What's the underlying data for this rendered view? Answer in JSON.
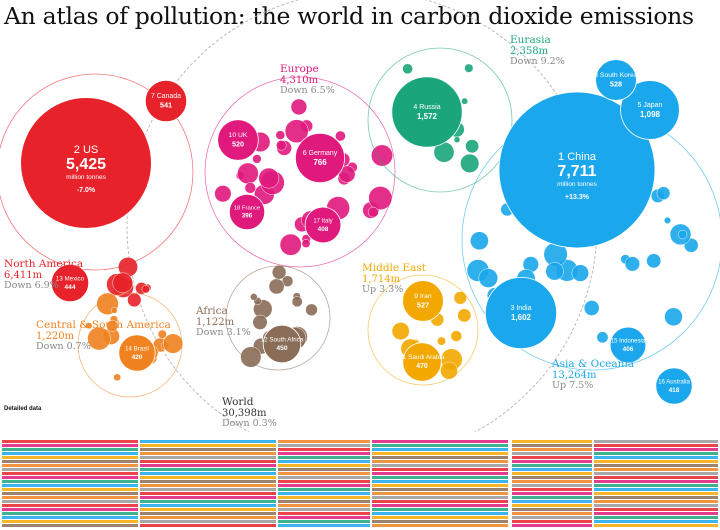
{
  "title": "An atlas of pollution: the world in carbon dioxide emissions",
  "palette": {
    "north_america": "#e8222a",
    "europe": "#e0197d",
    "eurasia": "#1aa67a",
    "asia_oceania": "#1aa7ec",
    "middle_east": "#f2a800",
    "africa": "#8a6d57",
    "central_south_america": "#f08220",
    "world": "#999999"
  },
  "chart_data": {
    "type": "bubble",
    "unit": "million tonnes",
    "regions": [
      {
        "key": "north_america",
        "name": "North America",
        "total": "6,411m",
        "change": "Down 6.9%"
      },
      {
        "key": "europe",
        "name": "Europe",
        "total": "4,310m",
        "change": "Down 6.5%"
      },
      {
        "key": "eurasia",
        "name": "Eurasia",
        "total": "2,358m",
        "change": "Down 9.2%"
      },
      {
        "key": "asia_oceania",
        "name": "Asia & Oceania",
        "total": "13,264m",
        "change": "Up 7.5%"
      },
      {
        "key": "middle_east",
        "name": "Middle East",
        "total": "1,714m",
        "change": "Up 3.3%"
      },
      {
        "key": "africa",
        "name": "Africa",
        "total": "1,122m",
        "change": "Down 3.1%"
      },
      {
        "key": "central_south_america",
        "name": "Central & South America",
        "total": "1,220m",
        "change": "Down 0.7%"
      },
      {
        "key": "world",
        "name": "World",
        "total": "30,398m",
        "change": "Down 0.3%"
      }
    ],
    "countries": [
      {
        "rank": 1,
        "name": "China",
        "value": 7711,
        "region": "asia_oceania",
        "value_text": "7,711",
        "unit_label": "million tonnes",
        "change_text": "+13.3%"
      },
      {
        "rank": 2,
        "name": "US",
        "value": 5425,
        "region": "north_america",
        "value_text": "5,425",
        "unit_label": "million tonnes",
        "change_text": "-7.0%"
      },
      {
        "rank": 3,
        "name": "India",
        "value": 1602,
        "region": "asia_oceania",
        "value_text": "1,602"
      },
      {
        "rank": 4,
        "name": "Russia",
        "value": 1572,
        "region": "eurasia",
        "value_text": "1,572"
      },
      {
        "rank": 5,
        "name": "Japan",
        "value": 1098,
        "region": "asia_oceania",
        "value_text": "1,098"
      },
      {
        "rank": 6,
        "name": "Germany",
        "value": 766,
        "region": "europe",
        "value_text": "766"
      },
      {
        "rank": 7,
        "name": "Canada",
        "value": 541,
        "region": "north_america",
        "value_text": "541"
      },
      {
        "rank": 8,
        "name": "South Korea",
        "value": 528,
        "region": "asia_oceania",
        "value_text": "528"
      },
      {
        "rank": 9,
        "name": "Iran",
        "value": 527,
        "region": "middle_east",
        "value_text": "527"
      },
      {
        "rank": 10,
        "name": "UK",
        "value": 520,
        "region": "europe",
        "value_text": "520"
      },
      {
        "rank": 11,
        "name": "Saudi Arabia",
        "value": 470,
        "region": "middle_east",
        "value_text": "470"
      },
      {
        "rank": 12,
        "name": "South Africa",
        "value": 450,
        "region": "africa",
        "value_text": "450"
      },
      {
        "rank": 13,
        "name": "Mexico",
        "value": 444,
        "region": "north_america",
        "value_text": "444"
      },
      {
        "rank": 14,
        "name": "Brazil",
        "value": 420,
        "region": "central_south_america",
        "value_text": "420"
      },
      {
        "rank": 15,
        "name": "Indonesia",
        "value": 406,
        "region": "asia_oceania",
        "value_text": "406"
      },
      {
        "rank": 16,
        "name": "Australia",
        "value": 418,
        "region": "asia_oceania",
        "value_text": "418"
      },
      {
        "rank": 17,
        "name": "Italy",
        "value": 408,
        "region": "europe",
        "value_text": "408"
      },
      {
        "rank": 18,
        "name": "France",
        "value": 396,
        "region": "europe",
        "value_text": "396"
      }
    ]
  },
  "tables": {
    "heading": "Detailed data"
  }
}
